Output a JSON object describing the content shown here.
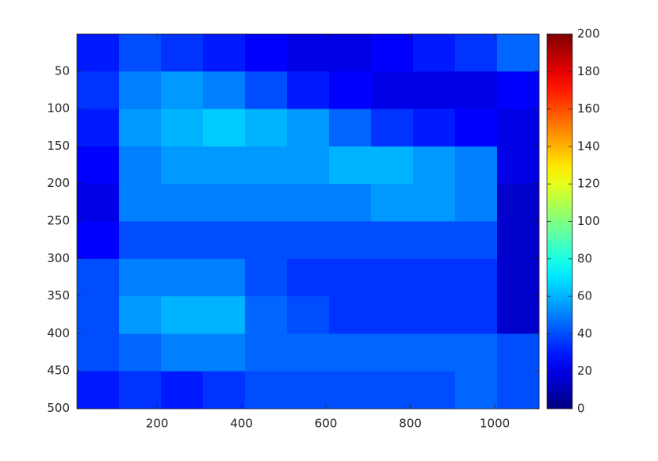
{
  "chart_data": {
    "type": "heatmap",
    "colormap": "jet",
    "xlim": [
      10,
      1105
    ],
    "xticks": [
      200,
      400,
      600,
      800,
      1000
    ],
    "ylim": [
      0.5,
      500.5
    ],
    "yticks": [
      50,
      100,
      150,
      200,
      250,
      300,
      350,
      400,
      450,
      500
    ],
    "y_reversed": true,
    "clim": [
      0,
      200
    ],
    "cticks": [
      0,
      20,
      40,
      60,
      80,
      100,
      120,
      140,
      160,
      180,
      200
    ],
    "values": [
      [
        30,
        40,
        35,
        30,
        25,
        20,
        20,
        25,
        30,
        35,
        45
      ],
      [
        35,
        50,
        55,
        50,
        40,
        30,
        25,
        20,
        20,
        20,
        25
      ],
      [
        30,
        55,
        60,
        65,
        60,
        55,
        45,
        35,
        30,
        25,
        20
      ],
      [
        25,
        50,
        55,
        55,
        55,
        55,
        60,
        60,
        55,
        50,
        20
      ],
      [
        20,
        50,
        50,
        50,
        50,
        50,
        50,
        55,
        55,
        50,
        15
      ],
      [
        25,
        40,
        40,
        40,
        40,
        40,
        40,
        40,
        40,
        40,
        15
      ],
      [
        40,
        50,
        50,
        50,
        40,
        35,
        35,
        35,
        35,
        35,
        15
      ],
      [
        40,
        55,
        60,
        60,
        45,
        40,
        35,
        35,
        35,
        35,
        15
      ],
      [
        40,
        45,
        50,
        50,
        45,
        45,
        45,
        45,
        45,
        45,
        40
      ],
      [
        30,
        35,
        30,
        35,
        40,
        40,
        40,
        40,
        40,
        45,
        40
      ]
    ]
  }
}
